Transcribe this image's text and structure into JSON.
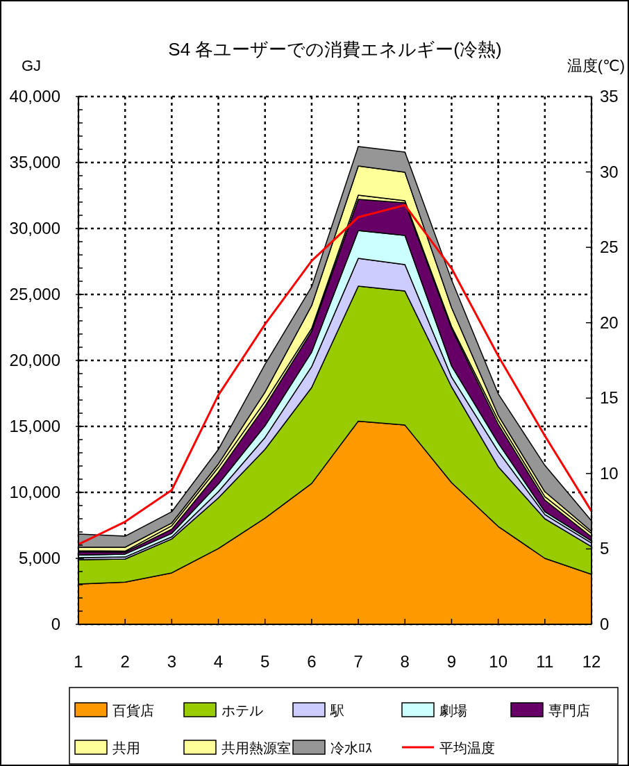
{
  "chart_data": {
    "type": "area",
    "stacked": true,
    "title": "S4  各ユーザーでの消費エネルギー(冷熱)",
    "ylabel": "GJ",
    "y2label": "温度(℃)",
    "x": [
      1,
      2,
      3,
      4,
      5,
      6,
      7,
      8,
      9,
      10,
      11,
      12
    ],
    "xlim": [
      1,
      12
    ],
    "xticks": [
      1,
      2,
      3,
      4,
      5,
      6,
      7,
      8,
      9,
      10,
      11,
      12
    ],
    "ylim": [
      0,
      40000
    ],
    "yticks": [
      {
        "value": 0,
        "label": "0"
      },
      {
        "value": 5000,
        "label": "5,000"
      },
      {
        "value": 10000,
        "label": "10,000"
      },
      {
        "value": 15000,
        "label": "15,000"
      },
      {
        "value": 20000,
        "label": "20,000"
      },
      {
        "value": 25000,
        "label": "25,000"
      },
      {
        "value": 30000,
        "label": "30,000"
      },
      {
        "value": 35000,
        "label": "35,000"
      },
      {
        "value": 40000,
        "label": "40,000"
      }
    ],
    "y2lim": [
      0,
      35
    ],
    "y2ticks": [
      0,
      5,
      10,
      15,
      20,
      25,
      30,
      35
    ],
    "grid": true,
    "legend": "bottom",
    "series": [
      {
        "name": "百貨店",
        "color": "#ff9900",
        "values": [
          3050,
          3200,
          3900,
          5740,
          8050,
          10680,
          15400,
          15100,
          10740,
          7420,
          5000,
          3790
        ]
      },
      {
        "name": "ホテル",
        "color": "#99cc00",
        "values": [
          1840,
          1750,
          2570,
          3840,
          5210,
          7270,
          10230,
          10160,
          7260,
          4530,
          3000,
          2100
        ]
      },
      {
        "name": "駅",
        "color": "#ccccff",
        "values": [
          160,
          150,
          160,
          470,
          900,
          1580,
          2110,
          2000,
          740,
          1160,
          320,
          270
        ]
      },
      {
        "name": "劇場",
        "color": "#ccffff",
        "values": [
          200,
          220,
          260,
          580,
          890,
          1100,
          2100,
          2210,
          840,
          630,
          210,
          160
        ]
      },
      {
        "name": "専門店",
        "color": "#660066",
        "values": [
          250,
          150,
          320,
          900,
          1480,
          1580,
          2370,
          2480,
          2840,
          1420,
          890,
          310
        ]
      },
      {
        "name": "共用",
        "color": "#ffff99",
        "values": [
          80,
          80,
          260,
          360,
          360,
          210,
          320,
          160,
          160,
          310,
          260,
          260
        ]
      },
      {
        "name": "共用熱源室",
        "color": "#ffff99",
        "values": [
          260,
          290,
          210,
          270,
          710,
          1740,
          2210,
          2150,
          1420,
          370,
          370,
          160
        ]
      },
      {
        "name": "冷水ﾛｽ",
        "color": "#969696",
        "values": [
          1000,
          840,
          850,
          1100,
          2100,
          1420,
          1470,
          1530,
          2110,
          1630,
          2000,
          790
        ]
      },
      {
        "name": "平均温度",
        "type": "line",
        "axis": "y2",
        "color": "#ff0000",
        "values": [
          5.3,
          6.8,
          8.9,
          15.2,
          19.9,
          24.1,
          27.0,
          27.8,
          23.6,
          17.8,
          12.5,
          7.5
        ]
      }
    ]
  }
}
